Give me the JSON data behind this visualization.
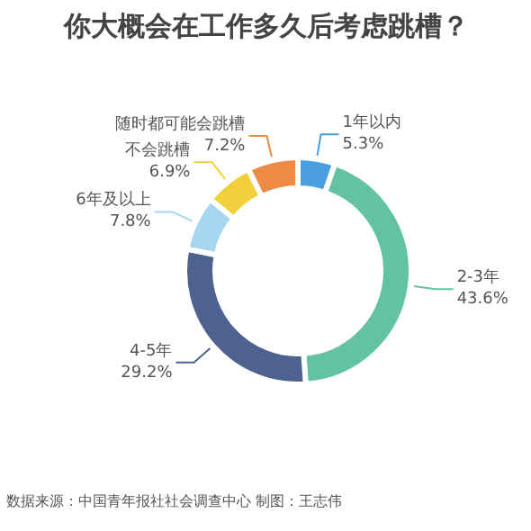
{
  "chart_data": {
    "type": "donut",
    "title": "你大概会在工作多久后考虑跳槽？",
    "categories": [
      "1年以内",
      "2-3年",
      "4-5年",
      "6年及以上",
      "不会跳槽",
      "随时都可能会跳槽"
    ],
    "values": [
      5.3,
      43.6,
      29.2,
      7.8,
      6.9,
      7.2
    ],
    "colors": [
      "#4a9fe0",
      "#63c3a0",
      "#4e6290",
      "#a6d6f2",
      "#f2d03c",
      "#ef8a44"
    ],
    "value_labels": [
      "5.3%",
      "43.6%",
      "29.2%",
      "7.8%",
      "6.9%",
      "7.2%"
    ],
    "annotations": [
      "数据来源：中国青年报社社会调查中心 制图：王志伟"
    ]
  }
}
